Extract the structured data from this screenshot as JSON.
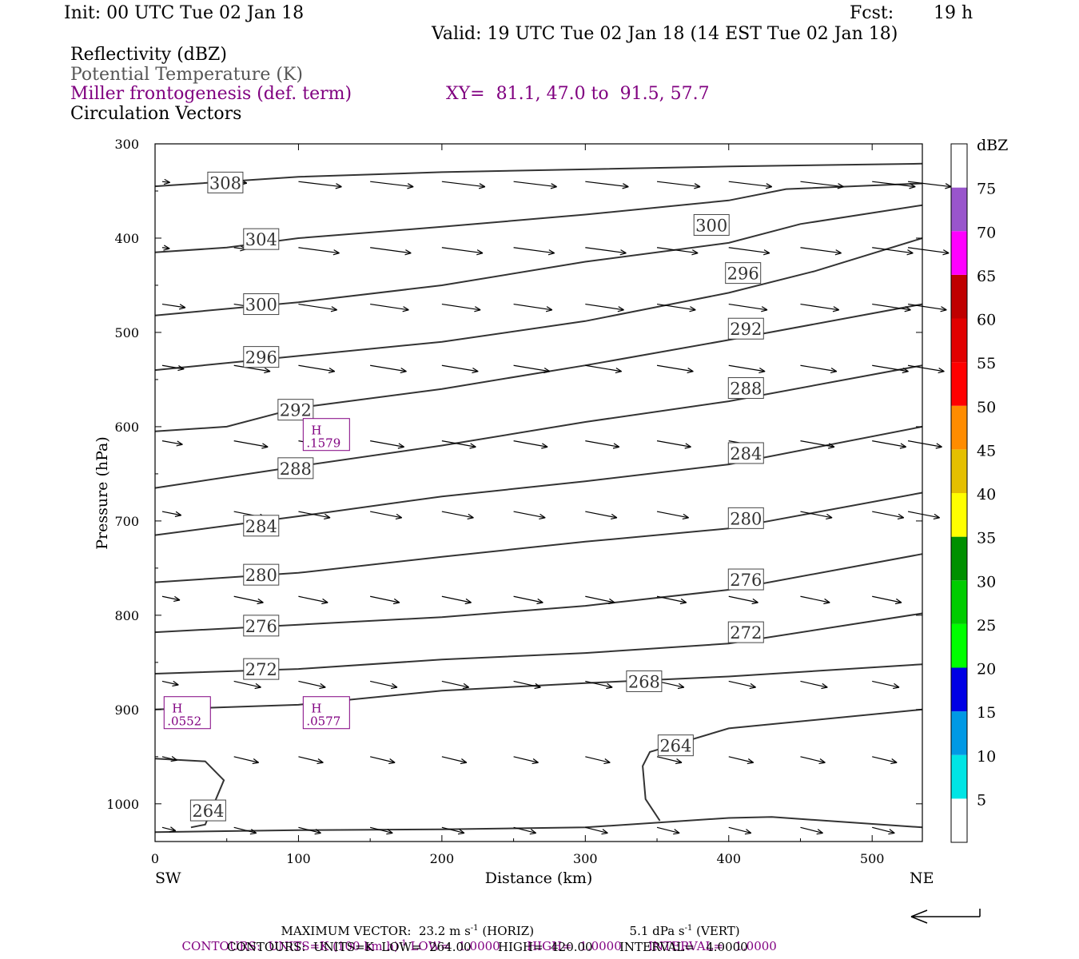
{
  "header": {
    "init": "Init: 00 UTC Tue 02 Jan 18",
    "fcst_label": "Fcst:",
    "fcst_value": "19 h",
    "valid": "Valid: 19 UTC Tue 02 Jan 18 (14 EST Tue 02 Jan 18)",
    "fields": {
      "reflectivity": "Reflectivity (dBZ)",
      "theta": "Potential Temperature (K)",
      "frontogenesis": "Miller frontogenesis (def. term)",
      "vectors": "Circulation Vectors"
    },
    "xy": "XY=  81.1, 47.0 to  91.5, 57.7"
  },
  "colors": {
    "contour": "#333333",
    "fronto": "#800080",
    "theta_text": "#555555"
  },
  "chart_data": {
    "type": "cross-section",
    "xlabel": "Distance (km)",
    "ylabel": "Pressure (hPa)",
    "xlim": [
      0,
      535
    ],
    "ylim": [
      1040,
      300
    ],
    "x_ticks": [
      0,
      100,
      200,
      300,
      400,
      500
    ],
    "y_ticks": [
      300,
      400,
      500,
      600,
      700,
      800,
      900,
      1000
    ],
    "x_left_label": "SW",
    "x_right_label": "NE",
    "grid": false,
    "theta_contours": [
      {
        "label": "308",
        "points": [
          [
            0,
            345
          ],
          [
            100,
            335
          ],
          [
            200,
            330
          ],
          [
            300,
            327
          ],
          [
            400,
            324
          ],
          [
            535,
            321
          ]
        ],
        "label_at": [
          49,
          341
        ]
      },
      {
        "label": "304",
        "points": [
          [
            0,
            415
          ],
          [
            50,
            410
          ],
          [
            100,
            400
          ],
          [
            200,
            388
          ],
          [
            300,
            375
          ],
          [
            400,
            360
          ],
          [
            440,
            348
          ],
          [
            535,
            342
          ]
        ],
        "label_at": [
          74,
          401
        ]
      },
      {
        "label": "300",
        "points": [
          [
            0,
            482
          ],
          [
            100,
            468
          ],
          [
            200,
            450
          ],
          [
            300,
            425
          ],
          [
            400,
            405
          ],
          [
            450,
            385
          ],
          [
            535,
            365
          ]
        ],
        "label_at": [
          74,
          470
        ],
        "label2_at": [
          388,
          386
        ]
      },
      {
        "label": "296",
        "points": [
          [
            0,
            540
          ],
          [
            100,
            525
          ],
          [
            200,
            510
          ],
          [
            300,
            488
          ],
          [
            400,
            458
          ],
          [
            460,
            435
          ],
          [
            535,
            400
          ]
        ],
        "label_at": [
          74,
          526
        ],
        "label2_at": [
          410,
          437
        ]
      },
      {
        "label": "292",
        "points": [
          [
            0,
            605
          ],
          [
            50,
            600
          ],
          [
            100,
            580
          ],
          [
            200,
            560
          ],
          [
            300,
            535
          ],
          [
            400,
            508
          ],
          [
            535,
            470
          ]
        ],
        "label_at": [
          98,
          582
        ],
        "label2_at": [
          412,
          496
        ]
      },
      {
        "label": "288",
        "points": [
          [
            0,
            665
          ],
          [
            100,
            642
          ],
          [
            200,
            620
          ],
          [
            300,
            595
          ],
          [
            400,
            573
          ],
          [
            535,
            535
          ]
        ],
        "label_at": [
          98,
          644
        ],
        "label2_at": [
          412,
          559
        ]
      },
      {
        "label": "284",
        "points": [
          [
            0,
            715
          ],
          [
            100,
            695
          ],
          [
            200,
            674
          ],
          [
            300,
            658
          ],
          [
            400,
            640
          ],
          [
            535,
            600
          ]
        ],
        "label_at": [
          74,
          705
        ],
        "label2_at": [
          412,
          628
        ]
      },
      {
        "label": "280",
        "points": [
          [
            0,
            765
          ],
          [
            100,
            755
          ],
          [
            200,
            738
          ],
          [
            300,
            722
          ],
          [
            400,
            708
          ],
          [
            535,
            670
          ]
        ],
        "label_at": [
          74,
          757
        ],
        "label2_at": [
          412,
          697
        ]
      },
      {
        "label": "276",
        "points": [
          [
            0,
            818
          ],
          [
            100,
            810
          ],
          [
            200,
            802
          ],
          [
            300,
            790
          ],
          [
            400,
            773
          ],
          [
            535,
            735
          ]
        ],
        "label_at": [
          74,
          811
        ],
        "label2_at": [
          412,
          762
        ]
      },
      {
        "label": "272",
        "points": [
          [
            0,
            862
          ],
          [
            100,
            857
          ],
          [
            200,
            847
          ],
          [
            300,
            840
          ],
          [
            400,
            830
          ],
          [
            535,
            798
          ]
        ],
        "label_at": [
          74,
          857
        ],
        "label2_at": [
          412,
          818
        ]
      },
      {
        "label": "268",
        "points": [
          [
            0,
            900
          ],
          [
            100,
            895
          ],
          [
            200,
            880
          ],
          [
            300,
            872
          ],
          [
            400,
            865
          ],
          [
            535,
            852
          ]
        ],
        "label_at": [
          341,
          870
        ]
      },
      {
        "label": "264",
        "points": [
          [
            0,
            952
          ],
          [
            35,
            955
          ],
          [
            48,
            975
          ],
          [
            35,
            1022
          ],
          [
            25,
            1025
          ]
        ],
        "label_at": [
          37,
          1007
        ]
      },
      {
        "label": "264",
        "points": [
          [
            0,
            1030
          ],
          [
            100,
            1028
          ],
          [
            200,
            1027
          ],
          [
            300,
            1025
          ],
          [
            400,
            1015
          ],
          [
            430,
            1014
          ],
          [
            535,
            1025
          ]
        ],
        "label_at": [
          363,
          938
        ]
      },
      {
        "label": "264",
        "points": [
          [
            352,
            1018
          ],
          [
            342,
            995
          ],
          [
            340,
            960
          ],
          [
            345,
            945
          ],
          [
            400,
            920
          ],
          [
            535,
            900
          ]
        ],
        "label_at": [
          363,
          938
        ]
      }
    ],
    "frontogenesis_highs": [
      {
        "label": "H",
        "value": ".1579",
        "x": 120,
        "y": 610
      },
      {
        "label": "H",
        "value": ".0552",
        "x": 23,
        "y": 905
      },
      {
        "label": "H",
        "value": ".0577",
        "x": 120,
        "y": 905
      }
    ],
    "reflectivity_colorbar": {
      "unit": "dBZ",
      "levels": [
        5,
        10,
        15,
        20,
        25,
        30,
        35,
        40,
        45,
        50,
        55,
        60,
        65,
        70,
        75
      ],
      "colors": [
        "#00e5e5",
        "#0099e5",
        "#0000e5",
        "#00ff00",
        "#00cc00",
        "#009000",
        "#ffff00",
        "#e5bf00",
        "#ff8c00",
        "#ff0000",
        "#e00000",
        "#bf0000",
        "#ff00ff",
        "#9955cc"
      ]
    },
    "vector_field": {
      "max_horiz": "23.2 m s",
      "max_vert": "5.1 dPa s"
    }
  },
  "footer": {
    "maxvec_prefix": "MAXIMUM VECTOR:",
    "maxvec_horiz": "23.2 m s",
    "maxvec_horiz_sup": "-1",
    "maxvec_horiz_tail": "(HORIZ)",
    "maxvec_vert": "5.1 dPa s",
    "maxvec_vert_sup": "-1",
    "maxvec_vert_tail": "(VERT)",
    "contours1_a": "CONTOURS:  UNITS=K (100 km h)",
    "contours1_sup": "-1",
    "contours1_b": " LOW=  1.0000       HIGH=  1.0000       INTERVAL=   1.0000",
    "contours2": "CONTOURS:  UNITS=K  LOW=  264.00       HIGH=  420.00       INTERVAL=   4.0000"
  }
}
